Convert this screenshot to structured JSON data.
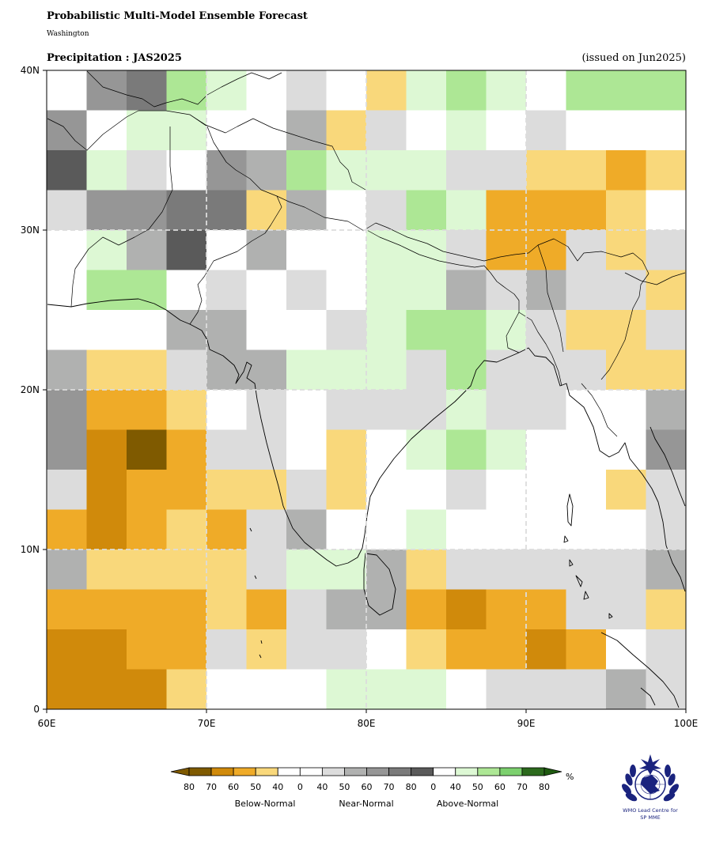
{
  "header": {
    "title": "Probabilistic Multi-Model Ensemble Forecast",
    "subtitle": "Washington",
    "map_title": "Precipitation : JAS2025",
    "issued": "(issued on Jun2025)"
  },
  "axes": {
    "lon_ticks": [
      "60E",
      "70E",
      "80E",
      "90E",
      "100E"
    ],
    "lat_ticks": [
      "40N",
      "30N",
      "20N",
      "10N",
      "0"
    ],
    "lon_range": [
      60,
      100
    ],
    "lat_range": [
      0,
      40
    ],
    "grid_step_deg": 2.5,
    "gridlines": "dashed every 10 degrees"
  },
  "colorbar": {
    "unit": "%",
    "numbers": [
      "80",
      "70",
      "60",
      "50",
      "40",
      "0",
      "40",
      "50",
      "60",
      "70",
      "80",
      "0",
      "40",
      "50",
      "60",
      "70",
      "80"
    ],
    "categories": [
      "Below-Normal",
      "Near-Normal",
      "Above-Normal"
    ],
    "colors": [
      "#7f5a00",
      "#d08a0b",
      "#efab28",
      "#f9d87b",
      "#ffffff",
      "#ffffff",
      "#dcdcdc",
      "#b0b1b0",
      "#969696",
      "#7a7a7a",
      "#5a5a5a",
      "#ffffff",
      "#ddf8d4",
      "#ade795",
      "#7cd06e",
      "#2c6a1d"
    ]
  },
  "palette": {
    "W": "#ffffff",
    "b50": "#f9d87b",
    "b60": "#efab28",
    "b70": "#d08a0b",
    "b80": "#7f5a00",
    "n40": "#dcdcdc",
    "n50": "#b0b1b0",
    "n60": "#969696",
    "n70": "#7a7a7a",
    "n80": "#5a5a5a",
    "a40": "#ddf8d4",
    "a50": "#ade795"
  },
  "grid_rows_north_to_south": [
    [
      "W",
      "n60",
      "n70",
      "a50",
      "a40",
      "W",
      "n40",
      "W",
      "b50",
      "a40",
      "a50",
      "a40",
      "W",
      "a50",
      "a50",
      "a50"
    ],
    [
      "n60",
      "W",
      "a40",
      "a40",
      "W",
      "W",
      "n50",
      "b50",
      "n40",
      "W",
      "a40",
      "W",
      "n40",
      "W",
      "W",
      "W"
    ],
    [
      "n80",
      "a40",
      "n40",
      "W",
      "n60",
      "n50",
      "a50",
      "a40",
      "a40",
      "a40",
      "n40",
      "n40",
      "b50",
      "b50",
      "b60",
      "b50"
    ],
    [
      "n40",
      "n60",
      "n60",
      "n70",
      "n70",
      "b50",
      "n50",
      "W",
      "n40",
      "a50",
      "a40",
      "b60",
      "b60",
      "b60",
      "b50",
      "W"
    ],
    [
      "W",
      "a40",
      "n50",
      "n80",
      "W",
      "n50",
      "W",
      "W",
      "a40",
      "a40",
      "n40",
      "b60",
      "b60",
      "n40",
      "b50",
      "n40"
    ],
    [
      "W",
      "a50",
      "a50",
      "W",
      "n40",
      "W",
      "n40",
      "W",
      "a40",
      "a40",
      "n50",
      "n40",
      "n50",
      "n40",
      "n40",
      "b50"
    ],
    [
      "W",
      "W",
      "W",
      "n50",
      "n50",
      "W",
      "W",
      "n40",
      "a40",
      "a50",
      "a50",
      "a40",
      "n40",
      "b50",
      "b50",
      "n40"
    ],
    [
      "n50",
      "b50",
      "b50",
      "n40",
      "n50",
      "n50",
      "a40",
      "a40",
      "a40",
      "n40",
      "a50",
      "n40",
      "n40",
      "n40",
      "b50",
      "b50"
    ],
    [
      "n60",
      "b60",
      "b60",
      "b50",
      "W",
      "n40",
      "W",
      "n40",
      "n40",
      "n40",
      "a40",
      "n40",
      "n40",
      "W",
      "W",
      "n50"
    ],
    [
      "n60",
      "b70",
      "b80",
      "b60",
      "n40",
      "n40",
      "W",
      "b50",
      "W",
      "a40",
      "a50",
      "a40",
      "W",
      "W",
      "W",
      "n60"
    ],
    [
      "n40",
      "b70",
      "b60",
      "b60",
      "b50",
      "b50",
      "n40",
      "b50",
      "W",
      "W",
      "n40",
      "W",
      "W",
      "W",
      "b50",
      "n40"
    ],
    [
      "b60",
      "b70",
      "b60",
      "b50",
      "b60",
      "n40",
      "n50",
      "W",
      "W",
      "a40",
      "W",
      "W",
      "W",
      "W",
      "W",
      "n40"
    ],
    [
      "n50",
      "b50",
      "b50",
      "b50",
      "b50",
      "n40",
      "a40",
      "a40",
      "n50",
      "b50",
      "n40",
      "n40",
      "n40",
      "n40",
      "n40",
      "n50"
    ],
    [
      "b60",
      "b60",
      "b60",
      "b60",
      "b50",
      "b60",
      "n40",
      "n50",
      "n50",
      "b60",
      "b70",
      "b60",
      "b60",
      "n40",
      "n40",
      "b50"
    ],
    [
      "b70",
      "b70",
      "b60",
      "b60",
      "n40",
      "b50",
      "n40",
      "n40",
      "W",
      "b50",
      "b60",
      "b60",
      "b70",
      "b60",
      "W",
      "n40"
    ],
    [
      "b70",
      "b70",
      "b70",
      "b50",
      "W",
      "W",
      "W",
      "a40",
      "a40",
      "a40",
      "W",
      "n40",
      "n40",
      "n40",
      "n50",
      "n40"
    ]
  ]
}
